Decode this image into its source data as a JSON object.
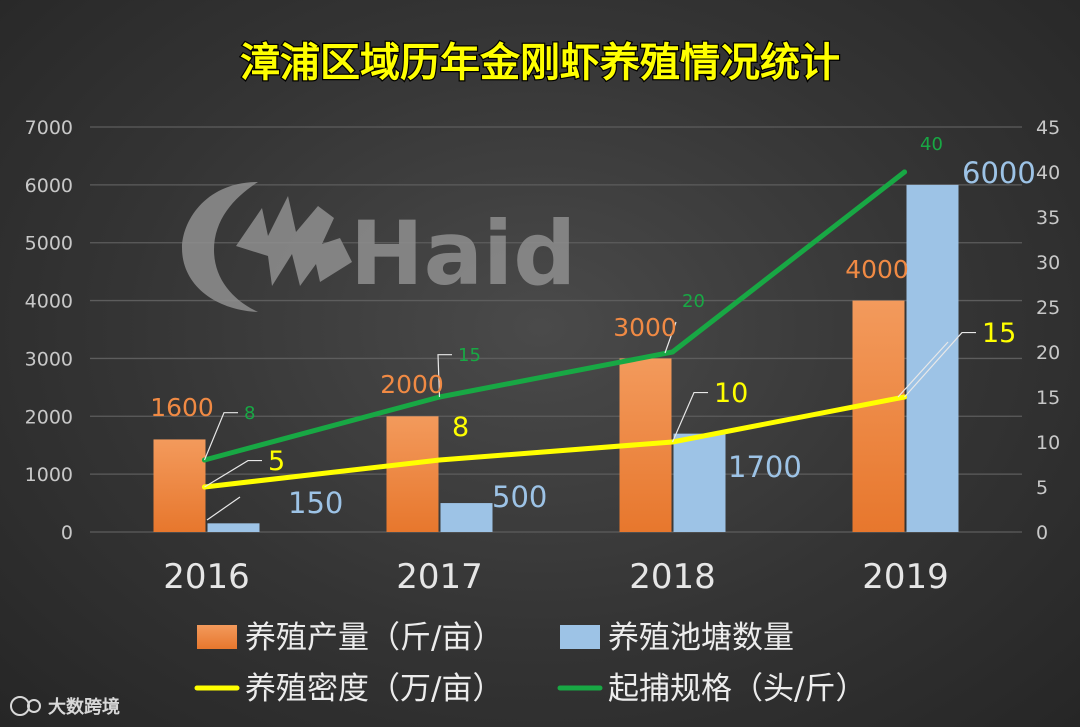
{
  "chart_data": {
    "type": "bar",
    "title": "漳浦区域历年金刚虾养殖情况统计",
    "categories": [
      "2016",
      "2017",
      "2018",
      "2019"
    ],
    "series": [
      {
        "name": "养殖产量（斤/亩）",
        "kind": "bar",
        "axis": "left",
        "color": "#f08a44",
        "values": [
          1600,
          2000,
          3000,
          4000
        ],
        "labels": [
          "1600",
          "2000",
          "3000",
          "4000"
        ]
      },
      {
        "name": "养殖池塘数量",
        "kind": "bar",
        "axis": "left",
        "color": "#9dc3e6",
        "values": [
          150,
          500,
          1700,
          6000
        ],
        "labels": [
          "150",
          "500",
          "1700",
          "6000"
        ]
      },
      {
        "name": "养殖密度（万/亩）",
        "kind": "line",
        "axis": "right",
        "color": "#ffff00",
        "values": [
          5,
          8,
          10,
          15
        ],
        "labels": [
          "5",
          "8",
          "10",
          "15"
        ]
      },
      {
        "name": "起捕规格（头/斤）",
        "kind": "line",
        "axis": "right",
        "color": "#18a844",
        "values": [
          8,
          15,
          20,
          40
        ],
        "labels": [
          "8",
          "15",
          "20",
          "40"
        ]
      }
    ],
    "y_left": {
      "min": 0,
      "max": 7000,
      "ticks": [
        "0",
        "1000",
        "2000",
        "3000",
        "4000",
        "5000",
        "6000",
        "7000"
      ]
    },
    "y_right": {
      "min": 0,
      "max": 45,
      "ticks": [
        "0",
        "5",
        "10",
        "15",
        "20",
        "25",
        "30",
        "35",
        "40",
        "45"
      ]
    },
    "grid": true,
    "legend_position": "bottom"
  },
  "watermark": {
    "text": "Haid"
  },
  "footer": {
    "text": "大数跨境"
  },
  "colors": {
    "grid": "#5d5d5d",
    "leader": "#e8e8e8"
  }
}
